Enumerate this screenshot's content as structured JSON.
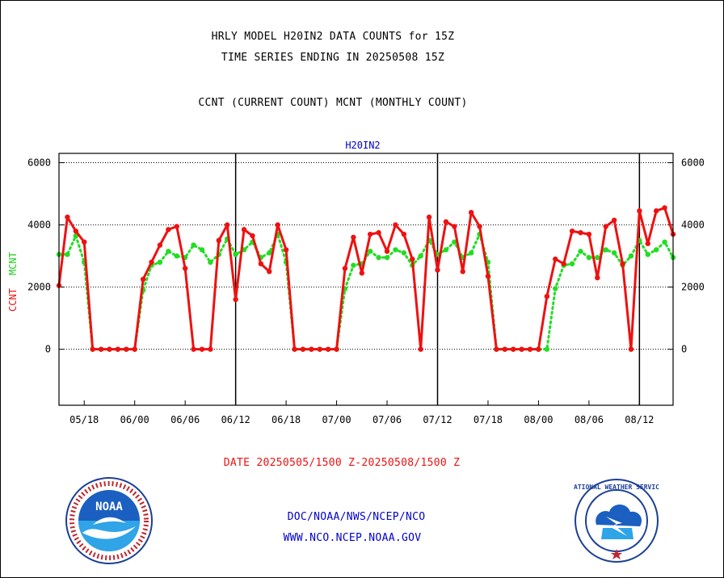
{
  "header": {
    "title_line1": "HRLY MODEL H20IN2 DATA COUNTS for 15Z",
    "title_line2": "TIME SERIES ENDING IN 20250508 15Z",
    "subtitle": "CCNT (CURRENT COUNT) MCNT (MONTHLY COUNT)"
  },
  "footer": {
    "date_range": "DATE 20250505/1500 Z-20250508/1500 Z",
    "org": "DOC/NOAA/NWS/NCEP/NCO",
    "url": "WWW.NCO.NCEP.NOAA.GOV"
  },
  "logos": {
    "left": "NOAA",
    "right": "NATIONAL WEATHER SERVICE"
  },
  "colors": {
    "ccnt": "#ee1111",
    "mcnt": "#22dd22",
    "label_blue": "#0000cc",
    "date_red": "#ee1111"
  },
  "chart_data": {
    "type": "line",
    "title": "H20IN2",
    "ylabel_ccnt": "CCNT",
    "ylabel_mcnt": "MCNT",
    "ylim": [
      -1800,
      6300
    ],
    "yticks": [
      0,
      2000,
      4000,
      6000
    ],
    "x_tick_labels": [
      "05/18",
      "06/00",
      "06/06",
      "06/12",
      "06/18",
      "07/00",
      "07/06",
      "07/12",
      "07/18",
      "08/00",
      "08/06",
      "08/12"
    ],
    "day_boundaries": [
      "06/12",
      "07/12",
      "08/12"
    ],
    "grid": true,
    "series": [
      {
        "name": "CCNT",
        "values": [
          2050,
          4250,
          3800,
          3450,
          0,
          0,
          0,
          0,
          0,
          0,
          2250,
          2800,
          3350,
          3850,
          3950,
          2600,
          0,
          0,
          0,
          3500,
          4000,
          1600,
          3850,
          3650,
          2750,
          2500,
          4000,
          3200,
          0,
          0,
          0,
          0,
          0,
          0,
          2600,
          3600,
          2450,
          3700,
          3750,
          3150,
          4000,
          3700,
          2900,
          0,
          4250,
          2550,
          4100,
          3950,
          2500,
          4400,
          3950,
          2350,
          0,
          0,
          0,
          0,
          0,
          0,
          1700,
          2900,
          2750,
          3800,
          3750,
          3700,
          2300,
          3950,
          4150,
          2750,
          0,
          4450,
          3400,
          4450,
          4550,
          3700
        ]
      },
      {
        "name": "MCNT",
        "values": [
          3050,
          3050,
          3650,
          2800,
          0,
          0,
          0,
          0,
          0,
          0,
          1900,
          2700,
          2800,
          3150,
          3000,
          2950,
          3350,
          3200,
          2800,
          3050,
          3550,
          3050,
          3200,
          3450,
          2950,
          3100,
          3700,
          2800,
          0,
          0,
          0,
          0,
          0,
          0,
          1950,
          2700,
          2750,
          3150,
          2950,
          2950,
          3200,
          3100,
          2700,
          3000,
          3500,
          3050,
          3200,
          3450,
          2950,
          3100,
          3700,
          2800,
          0,
          0,
          0,
          0,
          0,
          0,
          0,
          1950,
          2700,
          2750,
          3150,
          2950,
          2950,
          3200,
          3100,
          2700,
          3000,
          3500,
          3050,
          3200,
          3450,
          2950
        ]
      }
    ]
  }
}
